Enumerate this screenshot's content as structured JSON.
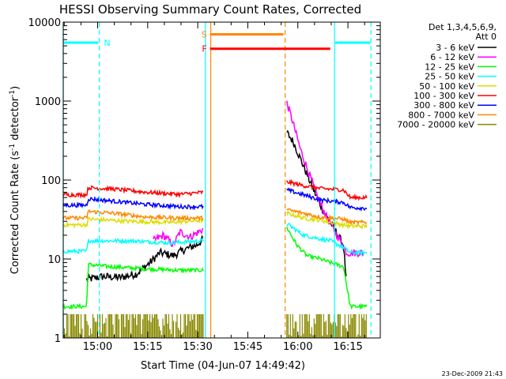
{
  "chart_data": {
    "type": "line",
    "title": "HESSI Observing Summary Count Rates, Corrected",
    "xlabel": "Start Time (04-Jun-07 14:49:42)",
    "ylabel_main": "Corrected Count Rate (s",
    "ylabel_sup": "-1",
    "ylabel_mid": " detector",
    "ylabel_end": ")",
    "x_range_minutes": [
      0,
      95
    ],
    "ylim": [
      1,
      10000
    ],
    "yscale": "log",
    "x_ticks": [
      {
        "minute": 10.3,
        "label": "15:00"
      },
      {
        "minute": 25.3,
        "label": "15:15"
      },
      {
        "minute": 40.3,
        "label": "15:30"
      },
      {
        "minute": 55.3,
        "label": "15:45"
      },
      {
        "minute": 70.3,
        "label": "16:00"
      },
      {
        "minute": 85.3,
        "label": "16:15"
      }
    ],
    "y_ticks": [
      {
        "value": 1,
        "label": "1"
      },
      {
        "value": 10,
        "label": "10"
      },
      {
        "value": 100,
        "label": "100"
      },
      {
        "value": 1000,
        "label": "1000"
      },
      {
        "value": 10000,
        "label": "10000"
      }
    ],
    "legend_header_1": "Det 1,3,4,5,6,9,",
    "legend_header_2": "Att 0",
    "series": [
      {
        "name": "3 - 6 keV",
        "color": "#000000",
        "segments": [
          [
            [
              7,
              5.5
            ],
            [
              12,
              6
            ],
            [
              17,
              5.8
            ],
            [
              22,
              6.5
            ],
            [
              26,
              9
            ],
            [
              29,
              12
            ],
            [
              33,
              11
            ],
            [
              36,
              13
            ],
            [
              40,
              15
            ],
            [
              42,
              18
            ]
          ],
          [
            [
              67,
              400
            ],
            [
              69,
              300
            ],
            [
              72,
              150
            ],
            [
              75,
              75
            ],
            [
              78,
              40
            ],
            [
              81,
              25
            ],
            [
              84,
              15
            ],
            [
              85,
              4
            ]
          ]
        ]
      },
      {
        "name": "6 - 12 keV",
        "color": "#ff00ff",
        "segments": [
          [
            [
              27,
              17
            ],
            [
              30,
              20
            ],
            [
              33,
              15
            ],
            [
              35,
              22
            ],
            [
              38,
              19
            ],
            [
              42,
              24
            ]
          ],
          [
            [
              67,
              950
            ],
            [
              68.5,
              600
            ],
            [
              71,
              250
            ],
            [
              74,
              110
            ],
            [
              77,
              50
            ],
            [
              80,
              28
            ],
            [
              83,
              17
            ],
            [
              85,
              12
            ],
            [
              90,
              12
            ]
          ]
        ]
      },
      {
        "name": "12 - 25 keV",
        "color": "#00ff00",
        "segments": [
          [
            [
              0,
              2.5
            ],
            [
              7,
              2.5
            ],
            [
              7.5,
              8.5
            ],
            [
              14,
              8
            ],
            [
              25,
              7.5
            ],
            [
              35,
              7.2
            ],
            [
              42,
              7.2
            ]
          ],
          [
            [
              67,
              25
            ],
            [
              70,
              15
            ],
            [
              73,
              11
            ],
            [
              77,
              10
            ],
            [
              80,
              9
            ],
            [
              84,
              8
            ],
            [
              86,
              2.5
            ],
            [
              91,
              2.5
            ]
          ]
        ]
      },
      {
        "name": "25 - 50 keV",
        "color": "#00ffff",
        "segments": [
          [
            [
              0,
              12.5
            ],
            [
              7,
              12.5
            ],
            [
              7.5,
              17
            ],
            [
              20,
              17
            ],
            [
              32,
              16
            ],
            [
              42,
              17
            ]
          ],
          [
            [
              67,
              28
            ],
            [
              72,
              20
            ],
            [
              77,
              18
            ],
            [
              80,
              17
            ],
            [
              84,
              14
            ],
            [
              86,
              12
            ],
            [
              91,
              12
            ]
          ]
        ]
      },
      {
        "name": "50 - 100 keV",
        "color": "#dddd00",
        "segments": [
          [
            [
              0,
              27
            ],
            [
              7,
              27
            ],
            [
              7.5,
              32
            ],
            [
              20,
              30
            ],
            [
              32,
              29
            ],
            [
              42,
              31
            ]
          ],
          [
            [
              67,
              38
            ],
            [
              72,
              33
            ],
            [
              77,
              31
            ],
            [
              84,
              27
            ],
            [
              86,
              26
            ],
            [
              91,
              26
            ]
          ]
        ]
      },
      {
        "name": "100 - 300 keV",
        "color": "#ff0000",
        "segments": [
          [
            [
              0,
              65
            ],
            [
              7,
              65
            ],
            [
              7.5,
              80
            ],
            [
              15,
              77
            ],
            [
              25,
              70
            ],
            [
              35,
              66
            ],
            [
              42,
              70
            ]
          ],
          [
            [
              67,
              95
            ],
            [
              72,
              85
            ],
            [
              77,
              78
            ],
            [
              84,
              75
            ],
            [
              86,
              60
            ],
            [
              91,
              60
            ]
          ]
        ]
      },
      {
        "name": "300 - 800 keV",
        "color": "#0000ff",
        "segments": [
          [
            [
              0,
              48
            ],
            [
              7,
              48
            ],
            [
              7.5,
              58
            ],
            [
              15,
              54
            ],
            [
              25,
              49
            ],
            [
              35,
              46
            ],
            [
              42,
              46
            ]
          ],
          [
            [
              67,
              75
            ],
            [
              72,
              65
            ],
            [
              77,
              56
            ],
            [
              84,
              52
            ],
            [
              86,
              45
            ],
            [
              91,
              44
            ]
          ]
        ]
      },
      {
        "name": "800 - 7000 keV",
        "color": "#ff8800",
        "segments": [
          [
            [
              0,
              33
            ],
            [
              7,
              33
            ],
            [
              7.5,
              40
            ],
            [
              15,
              38
            ],
            [
              25,
              34
            ],
            [
              35,
              33
            ],
            [
              42,
              33
            ]
          ],
          [
            [
              67,
              42
            ],
            [
              72,
              38
            ],
            [
              77,
              34
            ],
            [
              84,
              32
            ],
            [
              86,
              29
            ],
            [
              91,
              29
            ]
          ]
        ]
      },
      {
        "name": "7000 - 20000 keV",
        "color": "#888800",
        "segments": [
          [
            [
              0,
              2
            ],
            [
              42,
              2
            ]
          ],
          [
            [
              67,
              2
            ],
            [
              91,
              2
            ]
          ]
        ]
      }
    ],
    "state_bars": [
      {
        "label": "N",
        "color": "#00ffff",
        "segments": [
          [
            0,
            10.5,
            5500
          ],
          [
            81.5,
            92,
            5500
          ]
        ]
      },
      {
        "label": "S",
        "color": "#ff8800",
        "segments": [
          [
            44,
            66,
            7000
          ]
        ]
      },
      {
        "label": "F",
        "color": "#ff0000",
        "segments": [
          [
            44,
            80,
            4600
          ]
        ]
      }
    ],
    "vlines": [
      {
        "minute": 0,
        "color": "#00ffff",
        "style": "solid"
      },
      {
        "minute": 10.8,
        "color": "#00ffff",
        "style": "dashed"
      },
      {
        "minute": 42.6,
        "color": "#00ffff",
        "style": "solid"
      },
      {
        "minute": 44.2,
        "color": "#ff8800",
        "style": "solid"
      },
      {
        "minute": 66.5,
        "color": "#ff8800",
        "style": "dashed"
      },
      {
        "minute": 81.3,
        "color": "#00ffff",
        "style": "solid"
      },
      {
        "minute": 92.2,
        "color": "#00ffff",
        "style": "dashed"
      }
    ]
  },
  "timestamp": "23-Dec-2009 21:43"
}
